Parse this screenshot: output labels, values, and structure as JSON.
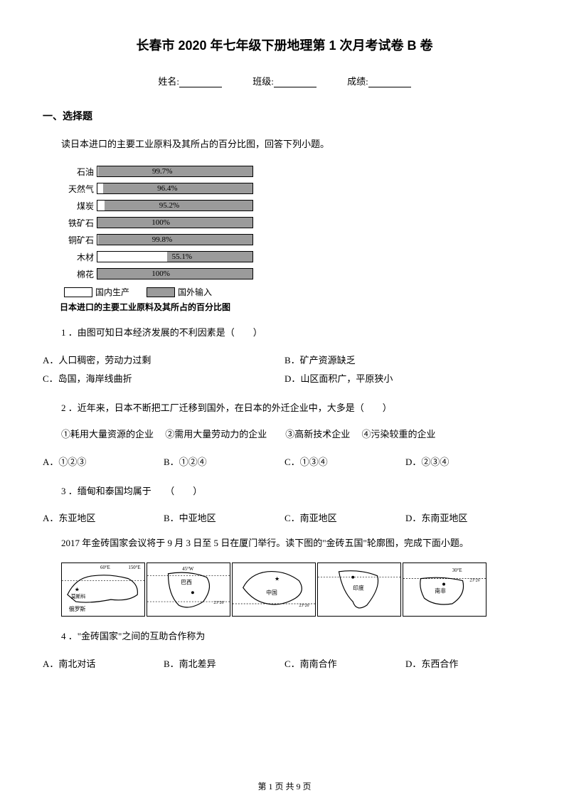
{
  "title": "长春市 2020 年七年级下册地理第 1 次月考试卷 B 卷",
  "info": {
    "name_label": "姓名:",
    "class_label": "班级:",
    "score_label": "成绩:"
  },
  "section1": "一、选择题",
  "passage1": "读日本进口的主要工业原料及其所占的百分比图，回答下列小题。",
  "chart": {
    "rows": [
      {
        "label": "石油",
        "import": 99.7,
        "text": "99.7%"
      },
      {
        "label": "天然气",
        "import": 96.4,
        "text": "96.4%"
      },
      {
        "label": "煤炭",
        "import": 95.2,
        "text": "95.2%"
      },
      {
        "label": "铁矿石",
        "import": 100,
        "text": "100%"
      },
      {
        "label": "铜矿石",
        "import": 99.8,
        "text": "99.8%"
      },
      {
        "label": "木材",
        "import": 55.1,
        "text": "55.1%"
      },
      {
        "label": "棉花",
        "import": 100,
        "text": "100%"
      }
    ],
    "legend_domestic": "国内生产",
    "legend_import": "国外输入",
    "caption": "日本进口的主要工业原料及其所占的百分比图",
    "bar_import_color": "#9b9b9b",
    "bar_domestic_color": "#ffffff",
    "font_size": 12
  },
  "q1": {
    "text": "1 ．由图可知日本经济发展的不利因素是（　　）",
    "a": "A．人口稠密，劳动力过剩",
    "b": "B．矿产资源缺乏",
    "c": "C．岛国，海岸线曲折",
    "d": "D．山区面积广，平原狭小"
  },
  "q2": {
    "text": "2 ．近年来，日本不断把工厂迁移到国外，在日本的外迁企业中，大多是（　　）",
    "sub": "①耗用大量资源的企业　 ②需用大量劳动力的企业　　③高新技术企业　 ④污染较重的企业",
    "a": "A．①②③",
    "b": "B．①②④",
    "c": "C．①③④",
    "d": "D．②③④"
  },
  "q3": {
    "text": "3 ．缅甸和泰国均属于　　（　　）",
    "a": "A．东亚地区",
    "b": "B．中亚地区",
    "c": "C．南亚地区",
    "d": "D．东南亚地区"
  },
  "passage2": "2017 年金砖国家会议将于 9 月 3 日至 5 日在厦门举行。读下图的\"金砖五国\"轮廓图，完成下面小题。",
  "maps": [
    "俄罗斯",
    "巴西",
    "中国",
    "印度",
    "南非"
  ],
  "q4": {
    "text": "4 ．\"金砖国家\"之间的互助合作称为",
    "a": "A．南北对话",
    "b": "B．南北差异",
    "c": "C．南南合作",
    "d": "D．东西合作"
  },
  "footer": "第 1 页 共 9 页"
}
